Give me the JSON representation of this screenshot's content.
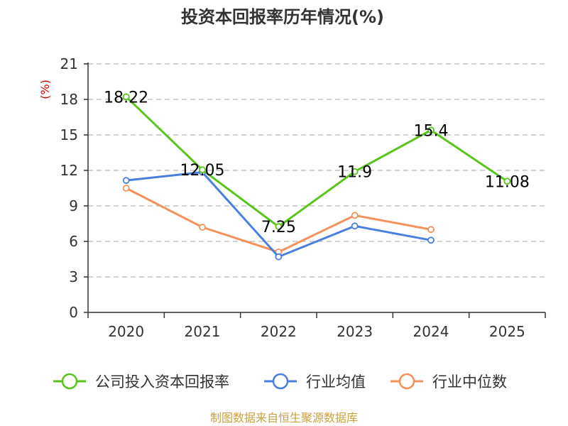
{
  "chart_data": {
    "type": "line",
    "title": "投资本回报率历年情况(%)",
    "y_unit": "(%)",
    "categories": [
      "2020",
      "2021",
      "2022",
      "2023",
      "2024",
      "2025"
    ],
    "ylim": [
      0,
      21
    ],
    "yticks": [
      0,
      3,
      6,
      9,
      12,
      15,
      18,
      21
    ],
    "yticks_labels": [
      "0",
      "3",
      "6",
      "9",
      "12",
      "15",
      "18",
      "21"
    ],
    "grid": true,
    "legend_position": "bottom",
    "series": [
      {
        "name": "公司投入资本回报率",
        "color": "#5ac41d",
        "values": [
          18.22,
          12.05,
          7.25,
          11.9,
          15.4,
          11.08
        ],
        "labels": [
          "18.22",
          "12.05",
          "7.25",
          "11.9",
          "15.4",
          "11.08"
        ]
      },
      {
        "name": "行业均值",
        "color": "#4a7fe0",
        "values": [
          11.15,
          11.85,
          4.7,
          7.3,
          6.1,
          null
        ]
      },
      {
        "name": "行业中位数",
        "color": "#f5915a",
        "values": [
          10.5,
          7.2,
          5.1,
          8.2,
          7.0,
          null
        ]
      }
    ]
  },
  "footer": {
    "source": "制图数据来自恒生聚源数据库"
  }
}
